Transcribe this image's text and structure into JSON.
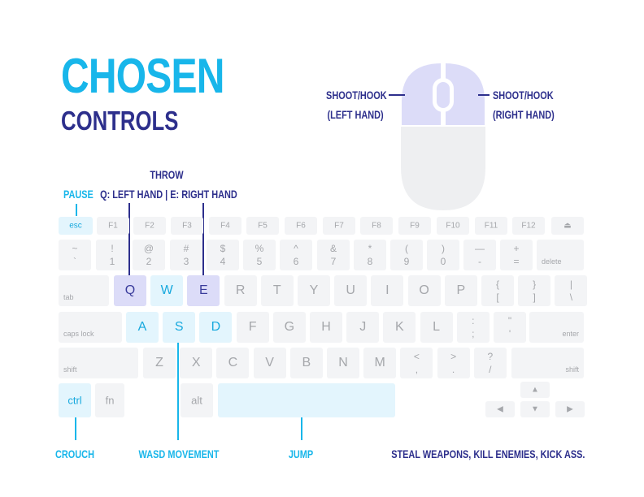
{
  "title": "CHOSEN",
  "subtitle": "CONTROLS",
  "colors": {
    "accent": "#18b6ea",
    "navy": "#2d2f8c",
    "mouse_button": "#dcdcf8",
    "mouse_body": "#eeeff1",
    "key": "#f3f4f6"
  },
  "mouse": {
    "left_label": [
      "SHOOT/HOOK",
      "(LEFT HAND)"
    ],
    "right_label": [
      "SHOOT/HOOK",
      "(RIGHT HAND)"
    ]
  },
  "callouts": {
    "pause": "PAUSE",
    "throw_title": "THROW",
    "throw_sub": "Q: LEFT HAND | E: RIGHT HAND",
    "crouch": "CROUCH",
    "movement": "WASD MOVEMENT",
    "jump": "JUMP",
    "tagline": "STEAL WEAPONS, KILL ENEMIES, KICK ASS."
  },
  "keyboard": {
    "function_row": [
      {
        "label": "esc",
        "highlight": "cyan"
      },
      {
        "label": "F1"
      },
      {
        "label": "F2"
      },
      {
        "label": "F3"
      },
      {
        "label": "F4"
      },
      {
        "label": "F5"
      },
      {
        "label": "F6"
      },
      {
        "label": "F7"
      },
      {
        "label": "F8"
      },
      {
        "label": "F9"
      },
      {
        "label": "F10"
      },
      {
        "label": "F11"
      },
      {
        "label": "F12"
      },
      {
        "label": "⏏",
        "icon": "eject-icon"
      }
    ],
    "number_row": [
      {
        "top": "~",
        "bottom": "`"
      },
      {
        "top": "!",
        "bottom": "1"
      },
      {
        "top": "@",
        "bottom": "2"
      },
      {
        "top": "#",
        "bottom": "3"
      },
      {
        "top": "$",
        "bottom": "4"
      },
      {
        "top": "%",
        "bottom": "5"
      },
      {
        "top": "^",
        "bottom": "6"
      },
      {
        "top": "&",
        "bottom": "7"
      },
      {
        "top": "*",
        "bottom": "8"
      },
      {
        "top": "(",
        "bottom": "9"
      },
      {
        "top": ")",
        "bottom": "0"
      },
      {
        "top": "—",
        "bottom": "-"
      },
      {
        "top": "+",
        "bottom": "="
      },
      {
        "corner": "delete"
      }
    ],
    "qwerty_row": [
      {
        "corner": "tab"
      },
      {
        "label": "Q",
        "highlight": "purple"
      },
      {
        "label": "W",
        "highlight": "cyan"
      },
      {
        "label": "E",
        "highlight": "purple"
      },
      {
        "label": "R"
      },
      {
        "label": "T"
      },
      {
        "label": "Y"
      },
      {
        "label": "U"
      },
      {
        "label": "I"
      },
      {
        "label": "O"
      },
      {
        "label": "P"
      },
      {
        "top": "{",
        "bottom": "["
      },
      {
        "top": "}",
        "bottom": "]"
      },
      {
        "top": "|",
        "bottom": "\\"
      }
    ],
    "home_row": [
      {
        "corner": "caps lock"
      },
      {
        "label": "A",
        "highlight": "cyan"
      },
      {
        "label": "S",
        "highlight": "cyan"
      },
      {
        "label": "D",
        "highlight": "cyan"
      },
      {
        "label": "F"
      },
      {
        "label": "G"
      },
      {
        "label": "H"
      },
      {
        "label": "J"
      },
      {
        "label": "K"
      },
      {
        "label": "L"
      },
      {
        "top": ":",
        "bottom": ";"
      },
      {
        "top": "\"",
        "bottom": "'"
      },
      {
        "corner_right": "enter"
      }
    ],
    "shift_row": [
      {
        "corner": "shift"
      },
      {
        "label": "Z"
      },
      {
        "label": "X"
      },
      {
        "label": "C"
      },
      {
        "label": "V"
      },
      {
        "label": "B"
      },
      {
        "label": "N"
      },
      {
        "label": "M"
      },
      {
        "top": "<",
        "bottom": ","
      },
      {
        "top": ">",
        "bottom": "."
      },
      {
        "top": "?",
        "bottom": "/"
      },
      {
        "corner_right": "shift"
      }
    ],
    "bottom_row": [
      {
        "label": "ctrl",
        "highlight": "cyan"
      },
      {
        "label": "fn"
      },
      {
        "label": "alt"
      },
      {
        "label": "",
        "highlight": "cyan"
      }
    ],
    "arrows": {
      "up": "▲",
      "left": "◀",
      "down": "▼",
      "right": "▶"
    }
  }
}
